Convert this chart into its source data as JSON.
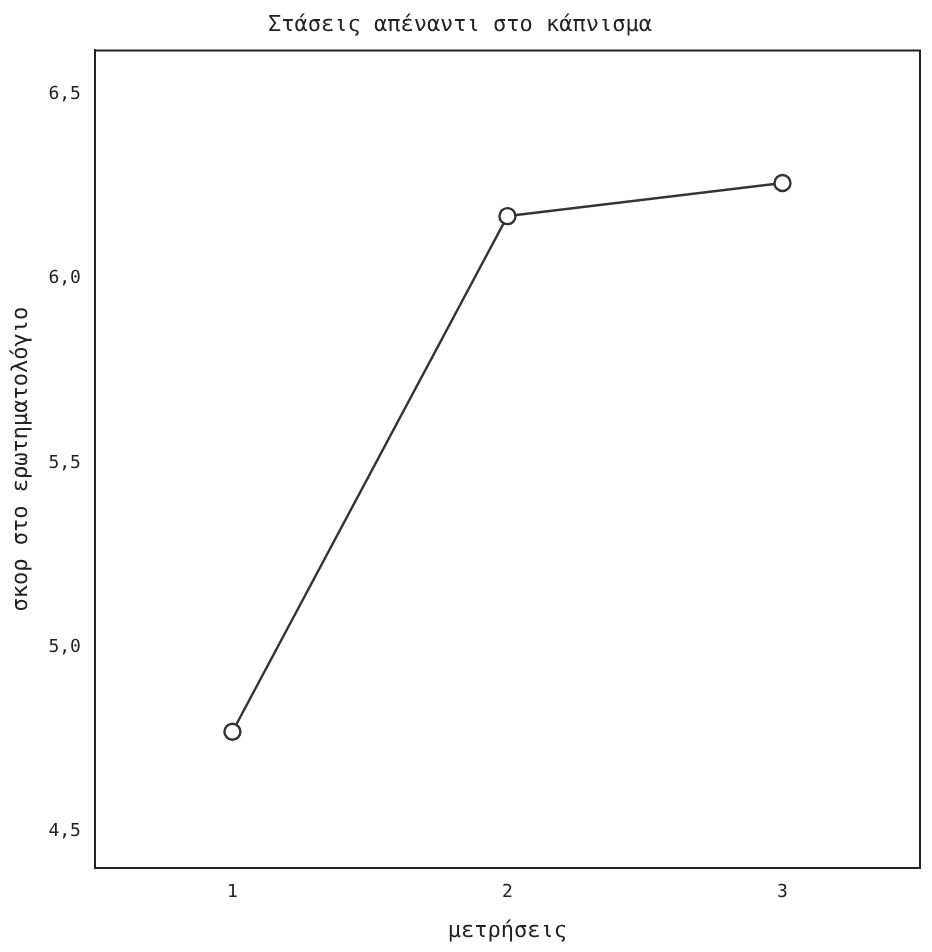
{
  "chart_data": {
    "type": "line",
    "title": "Στάσεις απέναντι στο κάπνισμα",
    "xlabel": "μετρήσεις",
    "ylabel": "σκορ στο ερωτηματολόγιο",
    "categories": [
      "1",
      "2",
      "3"
    ],
    "series": [
      {
        "color": "#333333",
        "values": [
          4.77,
          6.17,
          6.26
        ]
      }
    ],
    "ylim": [
      4.4,
      6.62
    ],
    "yticks": [
      {
        "value": 4.5,
        "label": "4,5"
      },
      {
        "value": 5,
        "label": "5,0"
      },
      {
        "value": 5.5,
        "label": "5,5"
      },
      {
        "value": 6,
        "label": "6,0"
      },
      {
        "value": 6.5,
        "label": "6,5"
      }
    ],
    "grid": false,
    "legend": false,
    "marker": "circle",
    "line_style": "solid"
  }
}
